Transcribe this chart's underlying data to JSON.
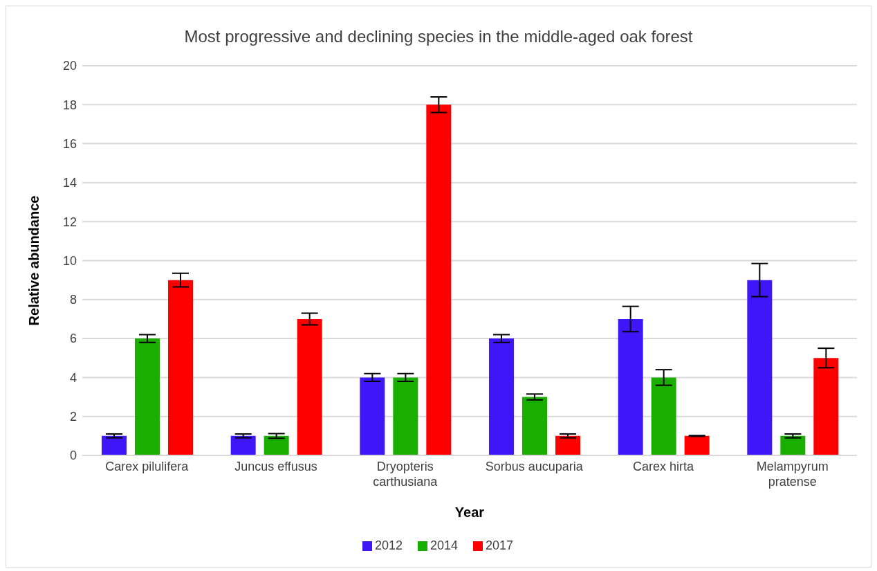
{
  "chart_data": {
    "type": "bar",
    "title": "Most progressive and declining species in the middle-aged oak forest",
    "xlabel": "Year",
    "ylabel": "Relative abundance",
    "categories": [
      "Carex pilulifera",
      "Juncus effusus",
      "Dryopteris carthusiana",
      "Sorbus aucuparia",
      "Carex hirta",
      "Melampyrum pratense"
    ],
    "series": [
      {
        "name": "2012",
        "color": "#3f16f8",
        "values": [
          1,
          1,
          4,
          6,
          7,
          9
        ],
        "errors": [
          0.1,
          0.1,
          0.2,
          0.2,
          0.65,
          0.85
        ]
      },
      {
        "name": "2014",
        "color": "#1aaf00",
        "values": [
          6,
          1,
          4,
          3,
          4,
          1
        ],
        "errors": [
          0.2,
          0.12,
          0.2,
          0.15,
          0.4,
          0.1
        ]
      },
      {
        "name": "2017",
        "color": "#ff0000",
        "values": [
          9,
          7,
          18,
          1,
          1,
          5
        ],
        "errors": [
          0.35,
          0.3,
          0.4,
          0.1,
          0.02,
          0.5
        ]
      }
    ],
    "ylim": [
      0,
      20
    ],
    "yticks": [
      0,
      2,
      4,
      6,
      8,
      10,
      12,
      14,
      16,
      18,
      20
    ],
    "grid": "y",
    "legend": "bottom"
  }
}
